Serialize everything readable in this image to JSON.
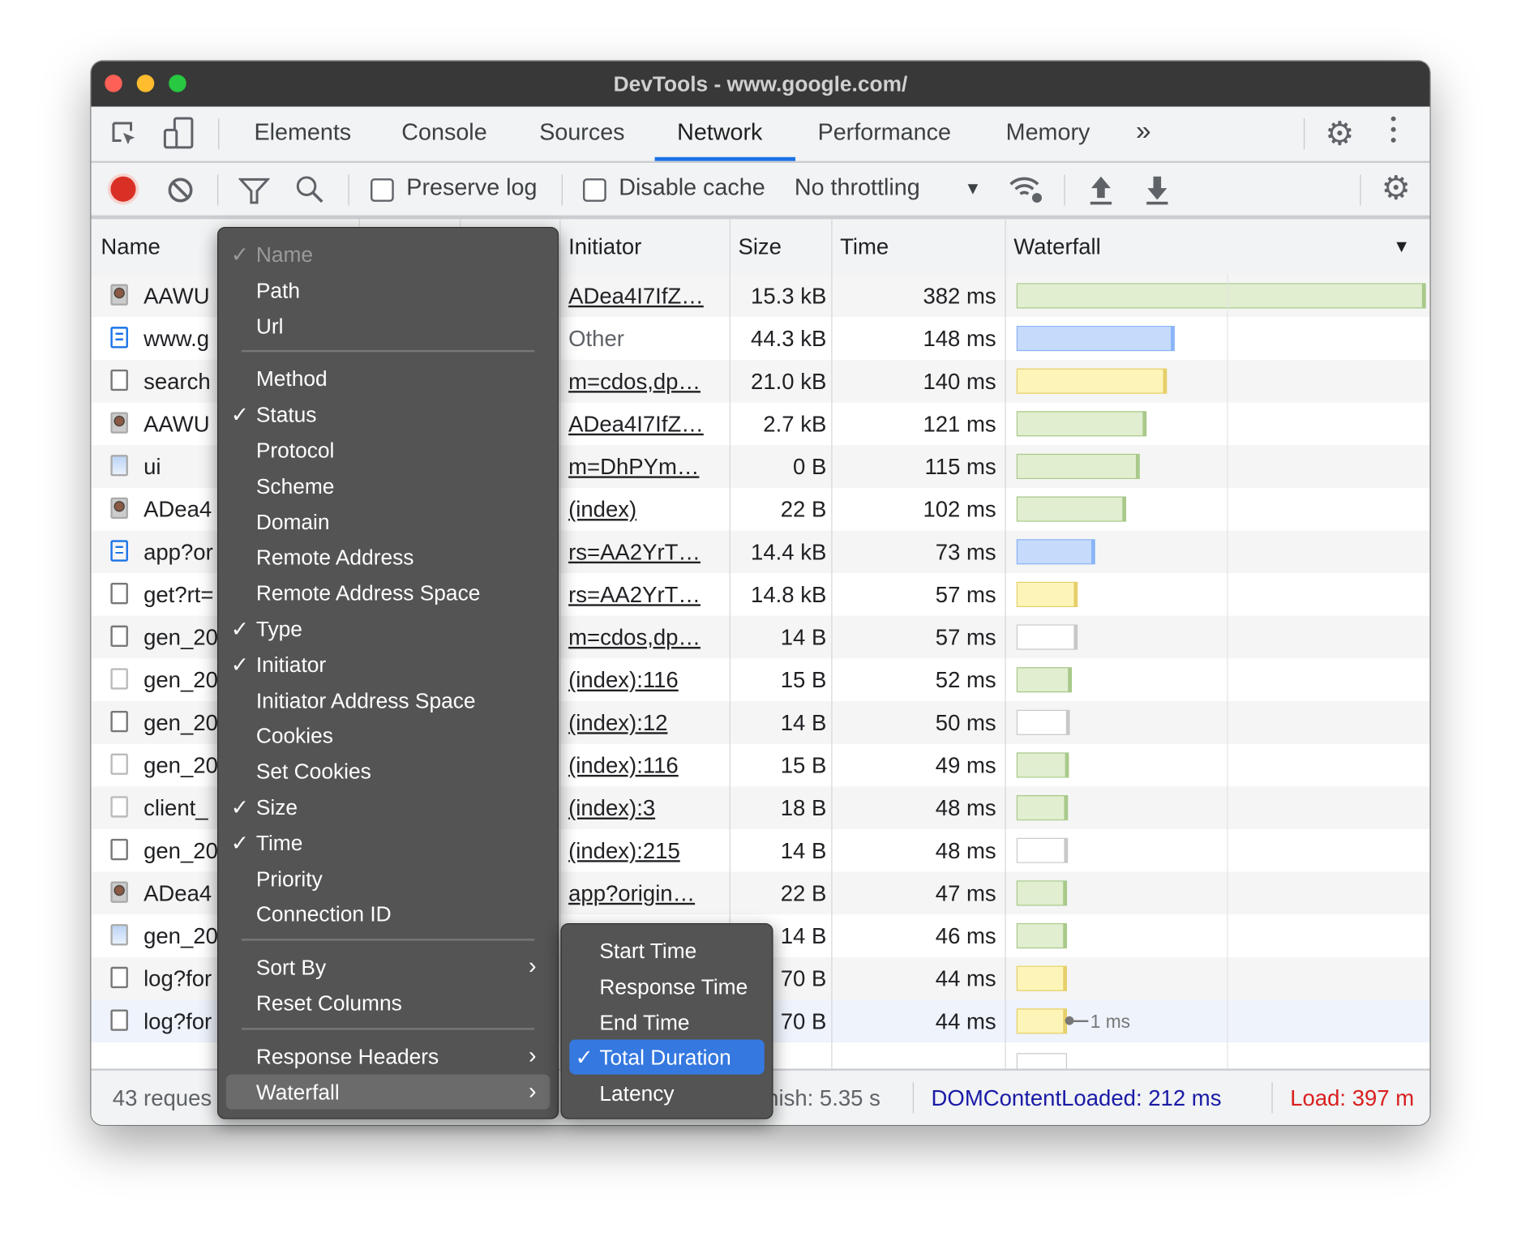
{
  "window": {
    "title": "DevTools - www.google.com/"
  },
  "tabs": [
    {
      "label": "Elements"
    },
    {
      "label": "Console"
    },
    {
      "label": "Sources"
    },
    {
      "label": "Network",
      "active": true
    },
    {
      "label": "Performance"
    },
    {
      "label": "Memory"
    }
  ],
  "tabs_more": "»",
  "toolbar": {
    "preserve_log": "Preserve log",
    "preserve_log_checked": false,
    "disable_cache": "Disable cache",
    "disable_cache_checked": false,
    "throttling": "No throttling"
  },
  "columns": {
    "name": "Name",
    "initiator": "Initiator",
    "size": "Size",
    "time": "Time",
    "waterfall": "Waterfall"
  },
  "colors": {
    "accent": "#1a73e8",
    "record": "#d93025",
    "dom_content_loaded": "#1a1aa6",
    "load": "#d92020",
    "bar_green": "#e1eed0",
    "bar_blue": "#c6dafc",
    "bar_yellow": "#fdf5b8"
  },
  "rows": [
    {
      "name": "AAWU",
      "icon": "image-avatar",
      "initiator": "ADea4I7IfZ…",
      "link": true,
      "size": "15.3 kB",
      "time": "382 ms",
      "bar": {
        "type": "green",
        "ms": 382
      }
    },
    {
      "name": "www.g",
      "icon": "document",
      "initiator": "Other",
      "link": false,
      "size": "44.3 kB",
      "time": "148 ms",
      "bar": {
        "type": "blue",
        "ms": 148
      }
    },
    {
      "name": "search",
      "icon": "file",
      "initiator": "m=cdos,dp…",
      "link": true,
      "size": "21.0 kB",
      "time": "140 ms",
      "bar": {
        "type": "yellow",
        "ms": 140
      }
    },
    {
      "name": "AAWU",
      "icon": "image-avatar",
      "initiator": "ADea4I7IfZ…",
      "link": true,
      "size": "2.7 kB",
      "time": "121 ms",
      "bar": {
        "type": "green",
        "ms": 121
      }
    },
    {
      "name": "ui",
      "icon": "image-placeholder",
      "initiator": "m=DhPYm…",
      "link": true,
      "size": "0 B",
      "time": "115 ms",
      "bar": {
        "type": "green",
        "ms": 115
      }
    },
    {
      "name": "ADea4",
      "icon": "image-avatar",
      "initiator": "(index)",
      "link": true,
      "size": "22 B",
      "time": "102 ms",
      "bar": {
        "type": "green",
        "ms": 102
      }
    },
    {
      "name": "app?or",
      "icon": "document",
      "initiator": "rs=AA2YrT…",
      "link": true,
      "size": "14.4 kB",
      "time": "73 ms",
      "bar": {
        "type": "blue",
        "ms": 73
      }
    },
    {
      "name": "get?rt=",
      "icon": "file",
      "initiator": "rs=AA2YrT…",
      "link": true,
      "size": "14.8 kB",
      "time": "57 ms",
      "bar": {
        "type": "yellow",
        "ms": 57
      }
    },
    {
      "name": "gen_20",
      "icon": "file",
      "initiator": "m=cdos,dp…",
      "link": true,
      "size": "14 B",
      "time": "57 ms",
      "bar": {
        "type": "white",
        "ms": 57
      }
    },
    {
      "name": "gen_20",
      "icon": "file-faint",
      "initiator": "(index):116",
      "link": true,
      "size": "15 B",
      "time": "52 ms",
      "bar": {
        "type": "green",
        "ms": 52
      }
    },
    {
      "name": "gen_20",
      "icon": "file",
      "initiator": "(index):12",
      "link": true,
      "size": "14 B",
      "time": "50 ms",
      "bar": {
        "type": "white",
        "ms": 50
      }
    },
    {
      "name": "gen_20",
      "icon": "file-faint",
      "initiator": "(index):116",
      "link": true,
      "size": "15 B",
      "time": "49 ms",
      "bar": {
        "type": "green",
        "ms": 49
      }
    },
    {
      "name": "client_",
      "icon": "file-faint",
      "initiator": "(index):3",
      "link": true,
      "size": "18 B",
      "time": "48 ms",
      "bar": {
        "type": "green",
        "ms": 48
      }
    },
    {
      "name": "gen_20",
      "icon": "file",
      "initiator": "(index):215",
      "link": true,
      "size": "14 B",
      "time": "48 ms",
      "bar": {
        "type": "white",
        "ms": 48
      }
    },
    {
      "name": "ADea4",
      "icon": "image-avatar",
      "initiator": "app?origin…",
      "link": true,
      "size": "22 B",
      "time": "47 ms",
      "bar": {
        "type": "green",
        "ms": 47
      }
    },
    {
      "name": "gen_20",
      "icon": "image-placeholder",
      "initiator": "",
      "link": true,
      "size": "14 B",
      "time": "46 ms",
      "bar": {
        "type": "green",
        "ms": 46
      }
    },
    {
      "name": "log?for",
      "icon": "file",
      "initiator": "",
      "link": true,
      "size": "70 B",
      "time": "44 ms",
      "bar": {
        "type": "yellow",
        "ms": 44
      }
    },
    {
      "name": "log?for",
      "icon": "file",
      "initiator": "",
      "link": true,
      "size": "70 B",
      "time": "44 ms",
      "bar": {
        "type": "yellow",
        "ms": 44
      },
      "selected": true,
      "tooltip": "1 ms"
    }
  ],
  "footer": {
    "requests": "43 reques",
    "finish": "nish: 5.35 s",
    "dom_content_loaded": "DOMContentLoaded: 212 ms",
    "load": "Load: 397 m"
  },
  "context_menu": {
    "items": [
      {
        "label": "Name",
        "checked": true,
        "disabled": true
      },
      {
        "label": "Path"
      },
      {
        "label": "Url"
      },
      {
        "separator": true
      },
      {
        "label": "Method"
      },
      {
        "label": "Status",
        "checked": true
      },
      {
        "label": "Protocol"
      },
      {
        "label": "Scheme"
      },
      {
        "label": "Domain"
      },
      {
        "label": "Remote Address"
      },
      {
        "label": "Remote Address Space"
      },
      {
        "label": "Type",
        "checked": true
      },
      {
        "label": "Initiator",
        "checked": true
      },
      {
        "label": "Initiator Address Space"
      },
      {
        "label": "Cookies"
      },
      {
        "label": "Set Cookies"
      },
      {
        "label": "Size",
        "checked": true
      },
      {
        "label": "Time",
        "checked": true
      },
      {
        "label": "Priority"
      },
      {
        "label": "Connection ID"
      },
      {
        "separator": true
      },
      {
        "label": "Sort By",
        "submenu": true
      },
      {
        "label": "Reset Columns"
      },
      {
        "separator": true
      },
      {
        "label": "Response Headers",
        "submenu": true
      },
      {
        "label": "Waterfall",
        "submenu": true,
        "highlighted": true
      }
    ]
  },
  "waterfall_submenu": {
    "items": [
      {
        "label": "Start Time"
      },
      {
        "label": "Response Time"
      },
      {
        "label": "End Time"
      },
      {
        "label": "Total Duration",
        "checked": true,
        "highlighted": true
      },
      {
        "label": "Latency"
      }
    ]
  }
}
